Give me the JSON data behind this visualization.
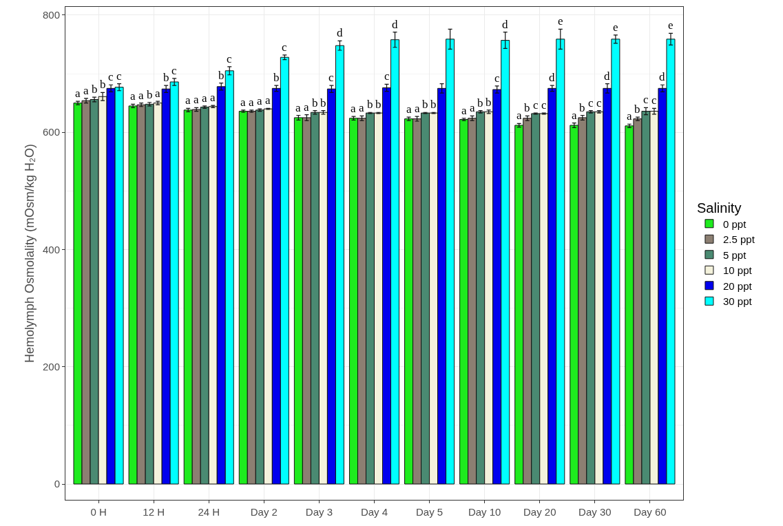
{
  "chart_data": {
    "type": "bar",
    "ylabel": "Hemolymph Osmolality (mOsm/kg H₂O)",
    "legend_title": "Salinity",
    "categories": [
      "0 H",
      "12 H",
      "24 H",
      "Day 2",
      "Day 3",
      "Day 4",
      "Day 5",
      "Day 10",
      "Day 20",
      "Day 30",
      "Day 60"
    ],
    "series": [
      {
        "name": "0 ppt",
        "color": "#1eeb1e",
        "values": [
          650,
          645,
          638,
          636,
          625,
          624,
          623,
          622,
          612,
          612,
          611
        ],
        "errors": [
          3,
          3,
          3,
          2,
          4,
          3,
          3,
          2,
          3,
          4,
          3
        ],
        "value_labels": [
          "a",
          "a",
          "a",
          "a",
          "a",
          "a",
          "a",
          "a",
          "a",
          "a",
          "a"
        ]
      },
      {
        "name": "2.5 ppt",
        "color": "#8c7f72",
        "values": [
          654,
          647,
          639,
          636,
          625,
          624,
          623,
          624,
          624,
          625,
          623
        ],
        "errors": [
          4,
          3,
          3,
          2,
          5,
          4,
          4,
          4,
          4,
          4,
          3
        ],
        "value_labels": [
          "a",
          "a",
          "a",
          "a",
          "a",
          "a",
          "a",
          "a",
          "b",
          "b",
          "b"
        ]
      },
      {
        "name": "5 ppt",
        "color": "#4a8a72",
        "values": [
          656,
          648,
          643,
          638,
          634,
          633,
          633,
          635,
          632,
          635,
          636
        ],
        "errors": [
          4,
          3,
          2,
          2,
          3,
          1,
          1,
          2,
          1,
          2,
          6
        ],
        "value_labels": [
          "b",
          "b",
          "a",
          "a",
          "b",
          "b",
          "b",
          "b",
          "c",
          "c",
          "c"
        ]
      },
      {
        "name": "10 ppt",
        "color": "#f4f2dc",
        "values": [
          661,
          650,
          644,
          640,
          634,
          633,
          633,
          635,
          632,
          635,
          636
        ],
        "errors": [
          7,
          3,
          2,
          1,
          3,
          1,
          1,
          3,
          1,
          2,
          5
        ],
        "value_labels": [
          "b",
          "a",
          "a",
          "a",
          "b",
          "b",
          "b",
          "b",
          "c",
          "c",
          "c"
        ]
      },
      {
        "name": "20 ppt",
        "color": "#0000ee",
        "values": [
          675,
          674,
          678,
          675,
          674,
          676,
          675,
          673,
          675,
          675,
          675
        ],
        "errors": [
          6,
          6,
          6,
          5,
          6,
          6,
          8,
          6,
          5,
          8,
          6
        ],
        "value_labels": [
          "c",
          "b",
          "b",
          "b",
          "c",
          "c",
          null,
          "c",
          "d",
          "d",
          "d"
        ]
      },
      {
        "name": "30 ppt",
        "color": "#00ffff",
        "values": [
          677,
          686,
          705,
          728,
          748,
          758,
          759,
          757,
          759,
          759,
          759
        ],
        "errors": [
          6,
          6,
          7,
          4,
          8,
          13,
          17,
          14,
          17,
          7,
          10
        ],
        "value_labels": [
          "c",
          "c",
          "c",
          "c",
          "d",
          "d",
          null,
          "d",
          "e",
          "e",
          "e"
        ]
      }
    ],
    "ylim": [
      -27,
      814
    ],
    "yticks": [
      0,
      200,
      400,
      600,
      800
    ],
    "grid": true,
    "legend": "right"
  }
}
